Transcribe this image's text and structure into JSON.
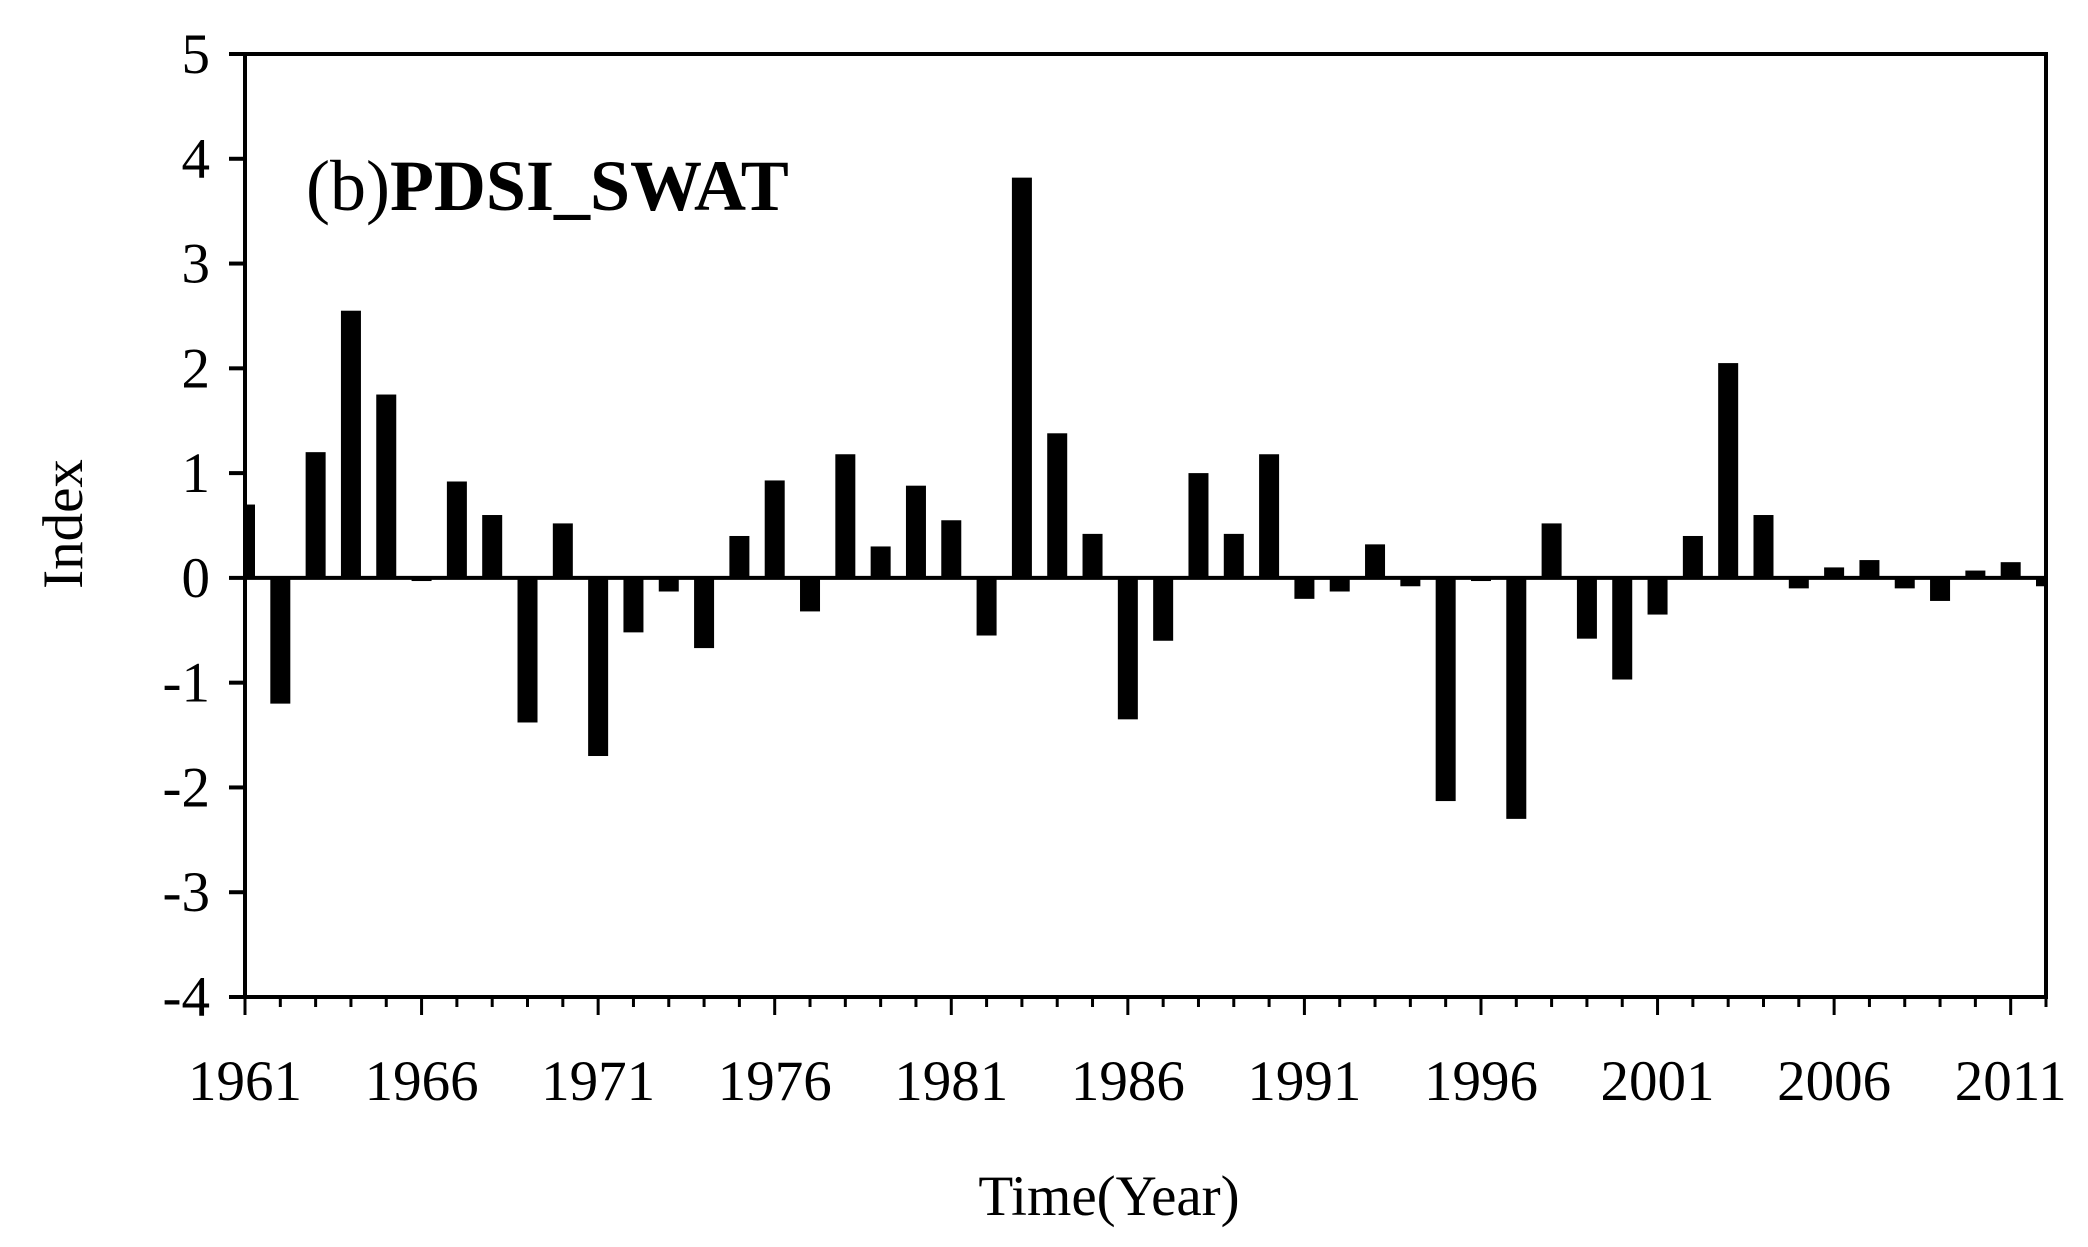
{
  "chart_data": {
    "type": "bar",
    "panel_label": {
      "prefix": "(b)",
      "main": "PDSI_SWAT"
    },
    "xlabel": "Time(Year)",
    "ylabel": "Index",
    "ylim": [
      -4,
      5
    ],
    "yticks": [
      5,
      4,
      3,
      2,
      1,
      0,
      -1,
      -2,
      -3,
      -4
    ],
    "xlim": [
      1961,
      2012
    ],
    "xticks": [
      1961,
      1966,
      1971,
      1976,
      1981,
      1986,
      1991,
      1996,
      2001,
      2006,
      2011
    ],
    "bar_color": "#000000",
    "grid": false,
    "legend": "none",
    "categories": [
      1961,
      1962,
      1963,
      1964,
      1965,
      1966,
      1967,
      1968,
      1969,
      1970,
      1971,
      1972,
      1973,
      1974,
      1975,
      1976,
      1977,
      1978,
      1979,
      1980,
      1981,
      1982,
      1983,
      1984,
      1985,
      1986,
      1987,
      1988,
      1989,
      1990,
      1991,
      1992,
      1993,
      1994,
      1995,
      1996,
      1997,
      1998,
      1999,
      2000,
      2001,
      2002,
      2003,
      2004,
      2005,
      2006,
      2007,
      2008,
      2009,
      2010,
      2011,
      2012
    ],
    "values": [
      0.7,
      -1.2,
      1.2,
      2.55,
      1.75,
      -0.03,
      0.92,
      0.6,
      -1.38,
      0.52,
      -1.7,
      -0.52,
      -0.13,
      -0.67,
      0.4,
      0.93,
      -0.32,
      1.18,
      0.3,
      0.88,
      0.55,
      -0.55,
      3.82,
      1.38,
      0.42,
      -1.35,
      -0.6,
      1.0,
      0.42,
      1.18,
      -0.2,
      -0.13,
      0.32,
      -0.08,
      -2.13,
      -0.03,
      -2.3,
      0.52,
      -0.58,
      -0.97,
      -0.35,
      0.4,
      2.05,
      0.6,
      -0.1,
      0.1,
      0.17,
      -0.1,
      -0.22,
      0.07,
      0.15,
      -0.08
    ]
  }
}
